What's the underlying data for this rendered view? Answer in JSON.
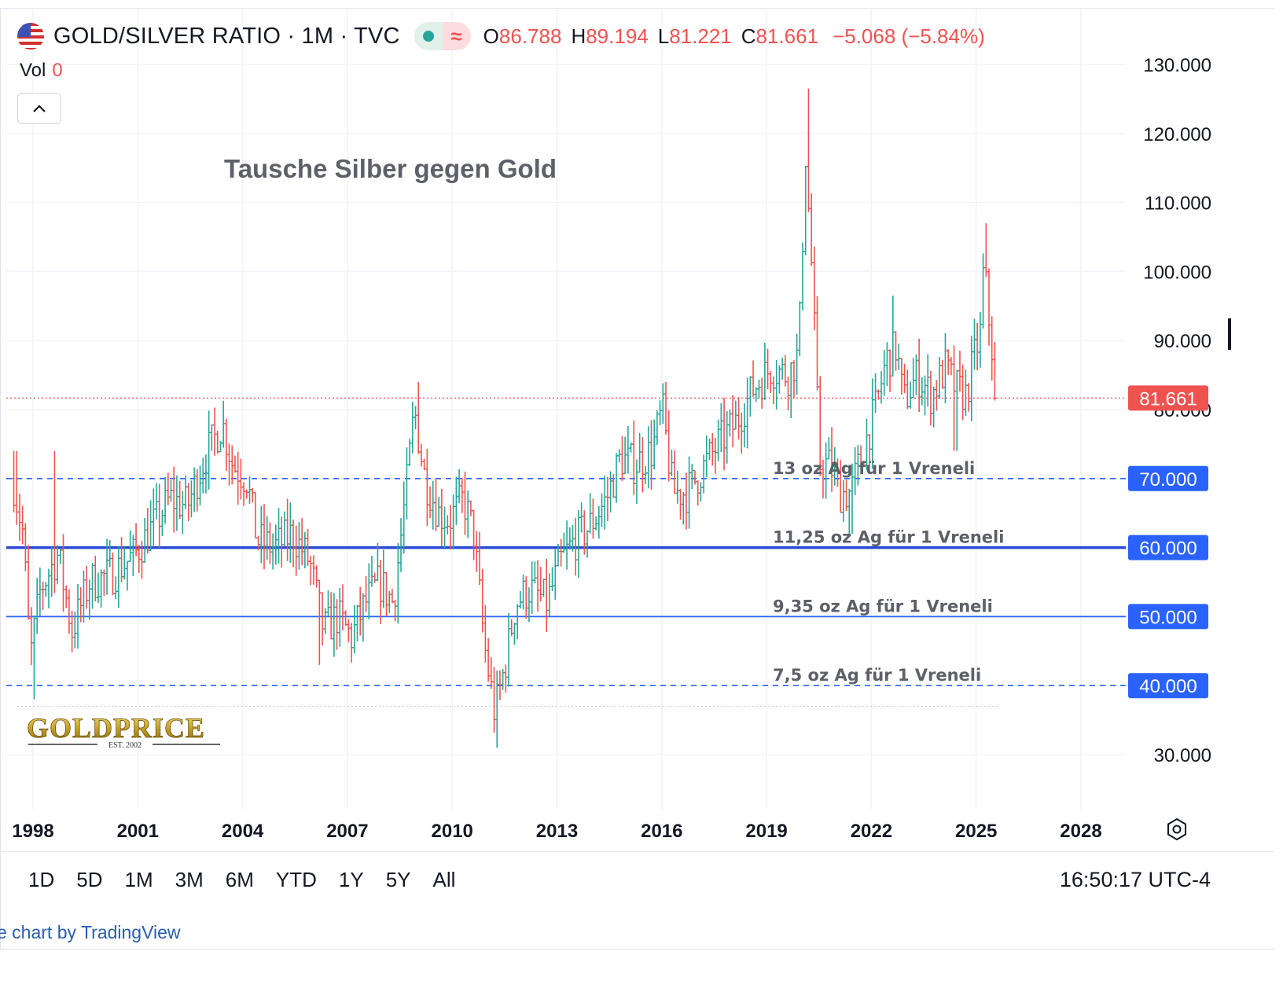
{
  "header": {
    "symbol": "GOLD/SILVER RATIO · 1M · TVC",
    "open_key": "O",
    "open": "86.788",
    "high_key": "H",
    "high": "89.194",
    "low_key": "L",
    "low": "81.221",
    "close_key": "C",
    "close": "81.661",
    "change": "−5.068 (−5.84%)",
    "approx_symbol": "≈"
  },
  "volume": {
    "label": "Vol",
    "value": "0"
  },
  "annotation_title": "Tausche Silber gegen Gold",
  "logo": {
    "text": "GOLDPRICE",
    "est": "EST. 2002"
  },
  "time_ranges": [
    "1D",
    "5D",
    "1M",
    "3M",
    "6M",
    "YTD",
    "1Y",
    "5Y",
    "All"
  ],
  "clock": "16:50:17 UTC-4",
  "credit": "e chart by TradingView",
  "colors": {
    "up": "#26a69a",
    "down": "#ef5350",
    "level_line": "#2962ff",
    "level_solid": "#2948d8",
    "price_line": "#ef5350"
  },
  "chart_data": {
    "type": "ohlc-bar",
    "interval": "1M",
    "x_ticks": [
      "1998",
      "2001",
      "2004",
      "2007",
      "2010",
      "2013",
      "2016",
      "2019",
      "2022",
      "2025",
      "2028"
    ],
    "y_ticks": [
      "130.000",
      "120.000",
      "110.000",
      "100.000",
      "90.000",
      "80.000",
      "30.000"
    ],
    "ylim": [
      22,
      134
    ],
    "xlim": [
      1997.0,
      2029.3
    ],
    "last_price": {
      "value": 81.661,
      "label": "81.661"
    },
    "levels": [
      {
        "value": 70,
        "label": "70.000",
        "style": "dashed",
        "annotation": "13 oz Ag für 1 Vreneli"
      },
      {
        "value": 60,
        "label": "60.000",
        "style": "solid-thick",
        "annotation": "11,25 oz Ag für 1 Vreneli"
      },
      {
        "value": 50,
        "label": "50.000",
        "style": "solid",
        "annotation": "9,35 oz Ag für 1 Vreneli"
      },
      {
        "value": 40,
        "label": "40.000",
        "style": "dashed",
        "annotation": "7,5 oz Ag für 1 Vreneli"
      }
    ],
    "anchors": [
      [
        1997.5,
        70
      ],
      [
        1997.8,
        62
      ],
      [
        1998.0,
        44
      ],
      [
        1998.3,
        54
      ],
      [
        1998.8,
        59
      ],
      [
        1999.2,
        48
      ],
      [
        1999.7,
        55
      ],
      [
        2000.3,
        56
      ],
      [
        2001.0,
        59
      ],
      [
        2001.5,
        63
      ],
      [
        2002.0,
        67
      ],
      [
        2002.5,
        66
      ],
      [
        2003.0,
        73
      ],
      [
        2003.5,
        78
      ],
      [
        2003.8,
        72
      ],
      [
        2004.2,
        70
      ],
      [
        2004.5,
        61
      ],
      [
        2005.0,
        60
      ],
      [
        2005.5,
        62
      ],
      [
        2006.0,
        58
      ],
      [
        2006.4,
        48
      ],
      [
        2006.8,
        50
      ],
      [
        2007.2,
        47
      ],
      [
        2007.6,
        52
      ],
      [
        2008.0,
        55
      ],
      [
        2008.4,
        52
      ],
      [
        2008.8,
        70
      ],
      [
        2009.0,
        80
      ],
      [
        2009.3,
        70
      ],
      [
        2009.7,
        65
      ],
      [
        2010.0,
        64
      ],
      [
        2010.4,
        67
      ],
      [
        2010.7,
        62
      ],
      [
        2011.0,
        46
      ],
      [
        2011.3,
        36
      ],
      [
        2011.6,
        43
      ],
      [
        2011.9,
        52
      ],
      [
        2012.3,
        54
      ],
      [
        2012.8,
        52
      ],
      [
        2013.2,
        58
      ],
      [
        2013.6,
        61
      ],
      [
        2014.0,
        63
      ],
      [
        2014.5,
        67
      ],
      [
        2014.9,
        73
      ],
      [
        2015.3,
        72
      ],
      [
        2015.8,
        74
      ],
      [
        2016.1,
        80
      ],
      [
        2016.4,
        68
      ],
      [
        2016.8,
        68
      ],
      [
        2017.2,
        71
      ],
      [
        2017.7,
        75
      ],
      [
        2018.2,
        78
      ],
      [
        2018.7,
        83
      ],
      [
        2019.2,
        86
      ],
      [
        2019.7,
        85
      ],
      [
        2020.0,
        88
      ],
      [
        2020.2,
        117
      ],
      [
        2020.4,
        98
      ],
      [
        2020.6,
        72
      ],
      [
        2020.9,
        72
      ],
      [
        2021.2,
        68
      ],
      [
        2021.5,
        68
      ],
      [
        2021.9,
        75
      ],
      [
        2022.2,
        80
      ],
      [
        2022.5,
        87
      ],
      [
        2022.8,
        89
      ],
      [
        2023.0,
        81
      ],
      [
        2023.4,
        85
      ],
      [
        2023.8,
        82
      ],
      [
        2024.2,
        86
      ],
      [
        2024.5,
        83
      ],
      [
        2024.8,
        82
      ],
      [
        2025.0,
        87
      ],
      [
        2025.2,
        91
      ],
      [
        2025.3,
        101
      ],
      [
        2025.4,
        96
      ],
      [
        2025.5,
        90
      ],
      [
        2025.6,
        86.8
      ]
    ],
    "spikes": [
      [
        1997.5,
        71,
        74
      ],
      [
        1998.0,
        38,
        45
      ],
      [
        1998.6,
        70,
        74
      ],
      [
        2006.2,
        43,
        48
      ],
      [
        2009.0,
        80,
        84
      ],
      [
        2011.3,
        31,
        33
      ],
      [
        2016.1,
        80,
        84
      ],
      [
        2020.2,
        110,
        126.5
      ],
      [
        2021.4,
        62,
        65
      ],
      [
        2022.6,
        88,
        96.5
      ],
      [
        2024.4,
        74,
        77
      ],
      [
        2025.3,
        104,
        107
      ]
    ]
  }
}
